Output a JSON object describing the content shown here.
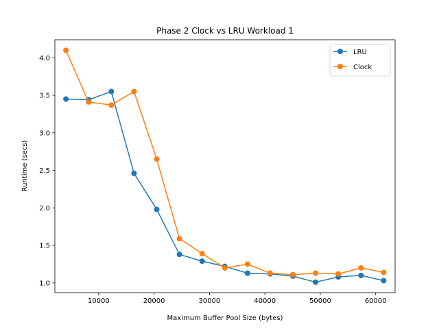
{
  "chart_data": {
    "type": "line",
    "title": "Phase 2 Clock vs LRU Workload 1",
    "xlabel": "Maximum Buffer Pool Size (bytes)",
    "ylabel": "Runtime (secs)",
    "xlim": [
      2100,
      63500
    ],
    "ylim": [
      0.87,
      4.24
    ],
    "xticks": [
      10000,
      20000,
      30000,
      40000,
      50000,
      60000
    ],
    "yticks": [
      1.0,
      1.5,
      2.0,
      2.5,
      3.0,
      3.5,
      4.0
    ],
    "xtick_labels": [
      "10000",
      "20000",
      "30000",
      "40000",
      "50000",
      "60000"
    ],
    "ytick_labels": [
      "1.0",
      "1.5",
      "2.0",
      "2.5",
      "3.0",
      "3.5",
      "4.0"
    ],
    "grid": false,
    "legend": {
      "position": "top-right"
    },
    "x": [
      4096,
      8192,
      12288,
      16384,
      20480,
      24576,
      28672,
      32768,
      36864,
      40960,
      45056,
      49152,
      53248,
      57344,
      61440
    ],
    "series": [
      {
        "name": "LRU",
        "color": "#1f77b4",
        "values": [
          3.45,
          3.44,
          3.55,
          2.46,
          1.98,
          1.38,
          1.29,
          1.22,
          1.13,
          1.12,
          1.09,
          1.01,
          1.08,
          1.1,
          1.03
        ]
      },
      {
        "name": "Clock",
        "color": "#ff7f0e",
        "values": [
          4.1,
          3.41,
          3.37,
          3.55,
          2.65,
          1.59,
          1.39,
          1.2,
          1.25,
          1.13,
          1.11,
          1.13,
          1.12,
          1.2,
          1.14
        ]
      }
    ]
  }
}
